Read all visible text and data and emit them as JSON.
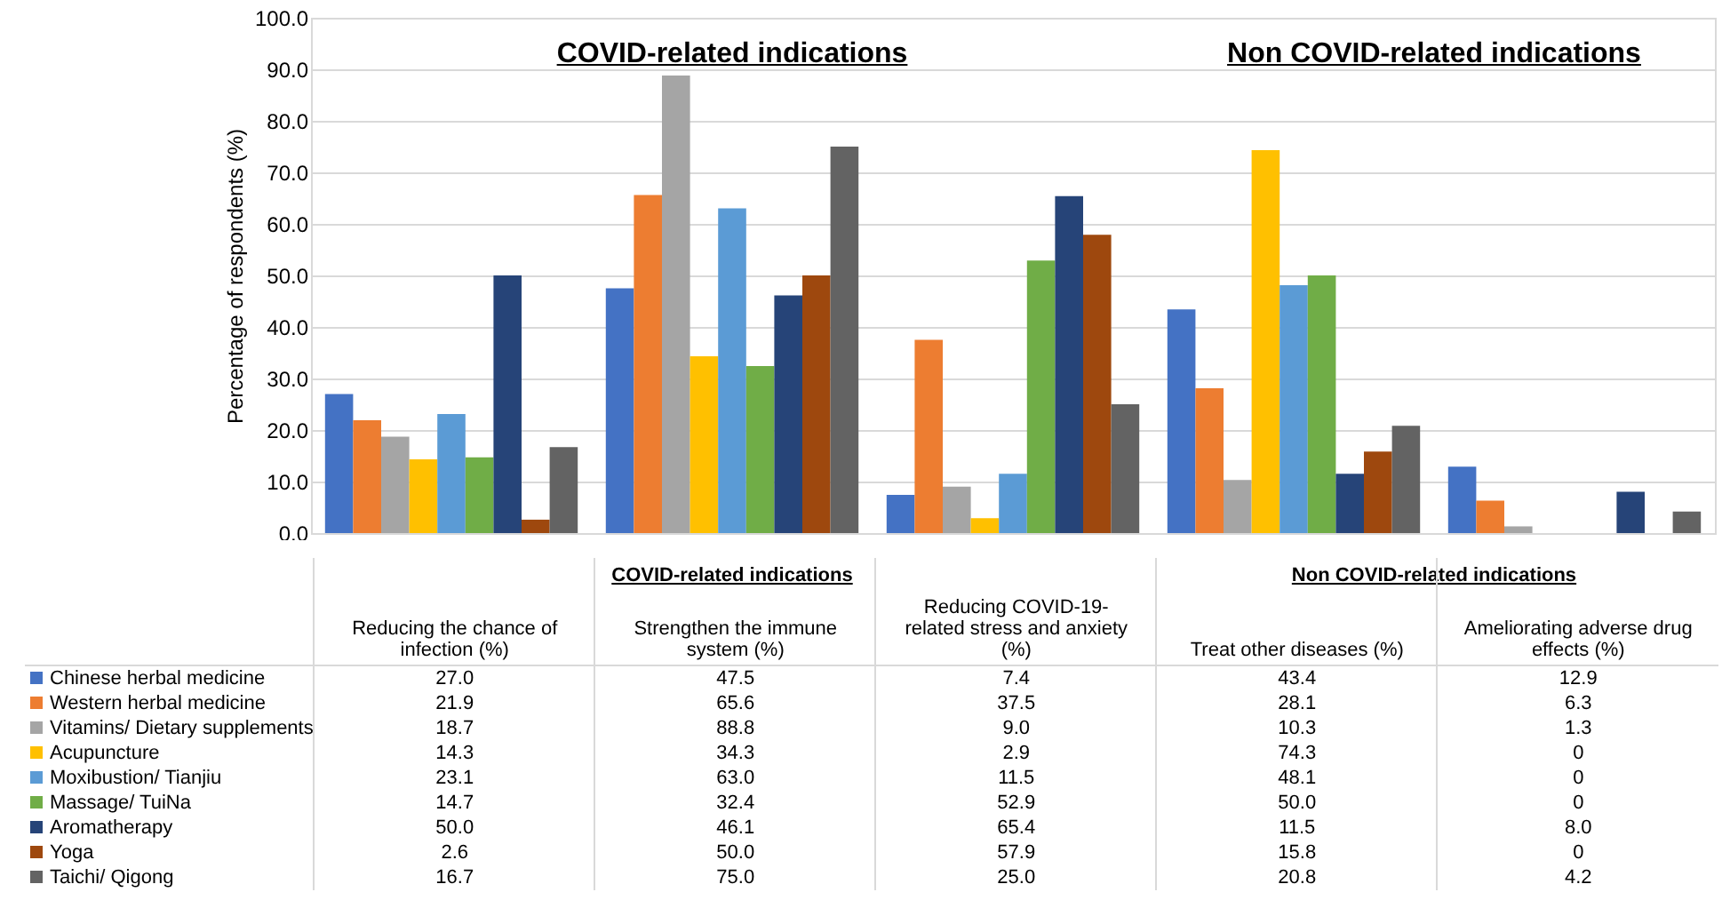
{
  "chart_data": {
    "type": "bar",
    "ylabel": "Percentage of respondents (%)",
    "categories": [
      "Reducing the chance of infection (%)",
      "Strengthen the immune system (%)",
      "Reducing COVID-19-related stress and anxiety (%)",
      "Treat other diseases (%)",
      "Ameliorating adverse drug effects (%)"
    ],
    "series": [
      {
        "name": "Chinese herbal medicine",
        "color": "#4472c4",
        "values": [
          27.0,
          47.5,
          7.4,
          43.4,
          12.9
        ],
        "value_labels": [
          "27.0",
          "47.5",
          "7.4",
          "43.4",
          "12.9"
        ]
      },
      {
        "name": "Western herbal medicine",
        "color": "#ed7d31",
        "values": [
          21.9,
          65.6,
          37.5,
          28.1,
          6.3
        ],
        "value_labels": [
          "21.9",
          "65.6",
          "37.5",
          "28.1",
          "6.3"
        ]
      },
      {
        "name": "Vitamins/ Dietary supplements",
        "color": "#a5a5a5",
        "values": [
          18.7,
          88.8,
          9.0,
          10.3,
          1.3
        ],
        "value_labels": [
          "18.7",
          "88.8",
          "9.0",
          "10.3",
          "1.3"
        ]
      },
      {
        "name": "Acupuncture",
        "color": "#ffc000",
        "values": [
          14.3,
          34.3,
          2.9,
          74.3,
          0
        ],
        "value_labels": [
          "14.3",
          "34.3",
          "2.9",
          "74.3",
          "0"
        ]
      },
      {
        "name": "Moxibustion/ Tianjiu",
        "color": "#5b9bd5",
        "values": [
          23.1,
          63.0,
          11.5,
          48.1,
          0
        ],
        "value_labels": [
          "23.1",
          "63.0",
          "11.5",
          "48.1",
          "0"
        ]
      },
      {
        "name": "Massage/ TuiNa",
        "color": "#70ad47",
        "values": [
          14.7,
          32.4,
          52.9,
          50.0,
          0
        ],
        "value_labels": [
          "14.7",
          "32.4",
          "52.9",
          "50.0",
          "0"
        ]
      },
      {
        "name": "Aromatherapy",
        "color": "#264478",
        "values": [
          50.0,
          46.1,
          65.4,
          11.5,
          8.0
        ],
        "value_labels": [
          "50.0",
          "46.1",
          "65.4",
          "11.5",
          "8.0"
        ]
      },
      {
        "name": "Yoga",
        "color": "#9e480e",
        "values": [
          2.6,
          50.0,
          57.9,
          15.8,
          0
        ],
        "value_labels": [
          "2.6",
          "50.0",
          "57.9",
          "15.8",
          "0"
        ]
      },
      {
        "name": "Taichi/ Qigong",
        "color": "#636363",
        "values": [
          16.7,
          75.0,
          25.0,
          20.8,
          4.2
        ],
        "value_labels": [
          "16.7",
          "75.0",
          "25.0",
          "20.8",
          "4.2"
        ]
      }
    ],
    "ylim": [
      0,
      100
    ],
    "yticks": [
      {
        "value": 0,
        "label": "0.0"
      },
      {
        "value": 10,
        "label": "10.0"
      },
      {
        "value": 20,
        "label": "20.0"
      },
      {
        "value": 30,
        "label": "30.0"
      },
      {
        "value": 40,
        "label": "40.0"
      },
      {
        "value": 50,
        "label": "50.0"
      },
      {
        "value": 60,
        "label": "60.0"
      },
      {
        "value": 70,
        "label": "70.0"
      },
      {
        "value": 80,
        "label": "80.0"
      },
      {
        "value": 90,
        "label": "90.0"
      },
      {
        "value": 100,
        "label": "100.0"
      }
    ],
    "annotations": [
      "COVID-related indications",
      "Non COVID-related indications",
      "COVID-related indications",
      "Non COVID-related indications"
    ],
    "grid": "y",
    "legend": "bottom"
  }
}
